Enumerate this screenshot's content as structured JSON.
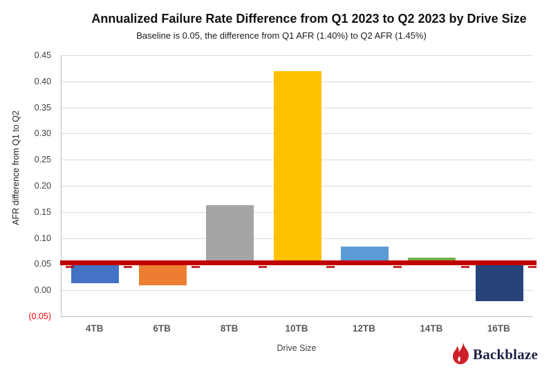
{
  "header": {
    "title": "Annualized Failure Rate Difference from Q1 2023 to Q2 2023 by Drive Size",
    "subtitle": "Baseline is 0.05, the difference from Q1 AFR (1.40%) to Q2 AFR (1.45%)"
  },
  "y_axis": {
    "title": "AFR difference from Q1 to Q2",
    "ticks": [
      {
        "label": "0.45",
        "value": 0.45,
        "color": "#404040"
      },
      {
        "label": "0.40",
        "value": 0.4,
        "color": "#404040"
      },
      {
        "label": "0.35",
        "value": 0.35,
        "color": "#404040"
      },
      {
        "label": "0.30",
        "value": 0.3,
        "color": "#404040"
      },
      {
        "label": "0.25",
        "value": 0.25,
        "color": "#404040"
      },
      {
        "label": "0.20",
        "value": 0.2,
        "color": "#404040"
      },
      {
        "label": "0.15",
        "value": 0.15,
        "color": "#404040"
      },
      {
        "label": "0.10",
        "value": 0.1,
        "color": "#404040"
      },
      {
        "label": "0.05",
        "value": 0.05,
        "color": "#404040"
      },
      {
        "label": "0.00",
        "value": 0.0,
        "color": "#404040"
      },
      {
        "label": "(0.05)",
        "value": -0.05,
        "color": "#FF0000"
      }
    ]
  },
  "x_axis": {
    "title": "Drive Size"
  },
  "footer": {
    "logo_text": "Backblaze",
    "logo_icon": "backblaze-flame-icon",
    "logo_text_color": "#1d2044",
    "flame_color": "#ce2029"
  },
  "chart_data": {
    "type": "bar",
    "title": "Annualized Failure Rate Difference from Q1 2023 to Q2 2023 by Drive Size",
    "subtitle": "Baseline is 0.05, the difference from Q1 AFR (1.40%) to Q2 AFR (1.45%)",
    "xlabel": "Drive Size",
    "ylabel": "AFR difference from Q1 to Q2",
    "categories": [
      "4TB",
      "6TB",
      "8TB",
      "10TB",
      "12TB",
      "14TB",
      "16TB"
    ],
    "values": [
      0.013,
      0.01,
      0.163,
      0.42,
      0.084,
      0.063,
      -0.021
    ],
    "bar_colors": [
      "#4472C4",
      "#ED7D31",
      "#A5A5A5",
      "#FFC000",
      "#5B9BD5",
      "#70AD47",
      "#264478"
    ],
    "baseline": 0.05,
    "baseline_color": "#C00000",
    "ylim": [
      -0.05,
      0.45
    ],
    "ytick_step": 0.05,
    "negative_ytick_format": "parentheses",
    "negative_ytick_color": "#FF0000",
    "grid": true,
    "legend": false,
    "bars_start_at_baseline": true
  }
}
